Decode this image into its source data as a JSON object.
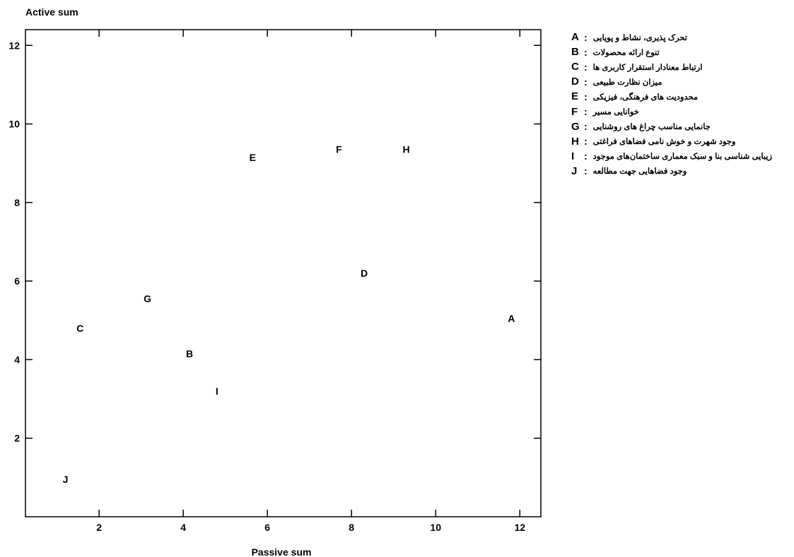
{
  "chart_data": {
    "type": "scatter",
    "ylabel": "Active sum",
    "xlabel": "Passive sum",
    "xlim": [
      0.25,
      12.5
    ],
    "ylim": [
      0,
      12.4
    ],
    "xticks": [
      "2",
      "4",
      "6",
      "8",
      "10",
      "12"
    ],
    "yticks": [
      "2",
      "4",
      "6",
      "8",
      "10",
      "12"
    ],
    "grid": false,
    "legend_placement": "right",
    "points": [
      {
        "label": "A",
        "x": 11.8,
        "y": 5.05
      },
      {
        "label": "B",
        "x": 4.15,
        "y": 4.15
      },
      {
        "label": "C",
        "x": 1.55,
        "y": 4.8
      },
      {
        "label": "D",
        "x": 8.3,
        "y": 6.2
      },
      {
        "label": "E",
        "x": 5.65,
        "y": 9.15
      },
      {
        "label": "F",
        "x": 7.7,
        "y": 9.35
      },
      {
        "label": "G",
        "x": 3.15,
        "y": 5.55
      },
      {
        "label": "H",
        "x": 9.3,
        "y": 9.35
      },
      {
        "label": "I",
        "x": 4.8,
        "y": 3.2
      },
      {
        "label": "J",
        "x": 1.2,
        "y": 0.95
      }
    ],
    "legend": [
      {
        "key": "A",
        "separator": ":",
        "text": "تحرک پذیری، نشاط و پویایی"
      },
      {
        "key": "B",
        "separator": ":",
        "text": "تنوع ارائه محصولات"
      },
      {
        "key": "C",
        "separator": ":",
        "text": "ارتباط معنادار استقرار کاربری ها"
      },
      {
        "key": "D",
        "separator": ":",
        "text": "میزان نظارت طبیعی"
      },
      {
        "key": "E",
        "separator": ":",
        "text": "محدودیت های فرهنگی، فیزیکی"
      },
      {
        "key": "F",
        "separator": ":",
        "text": "خوانایی مسیر"
      },
      {
        "key": "G",
        "separator": ":",
        "text": "جانمایی مناسب چراغ های روشنایی"
      },
      {
        "key": "H",
        "separator": ":",
        "text": "وجود شهرت و خوش نامی فضاهای فراغتی"
      },
      {
        "key": "I",
        "separator": ":",
        "text": "زیبایی شناسی بنا و سبک معماری ساختمان‌های موجود"
      },
      {
        "key": "J",
        "separator": ":",
        "text": "وجود فضاهایی جهت مطالعه"
      }
    ]
  }
}
